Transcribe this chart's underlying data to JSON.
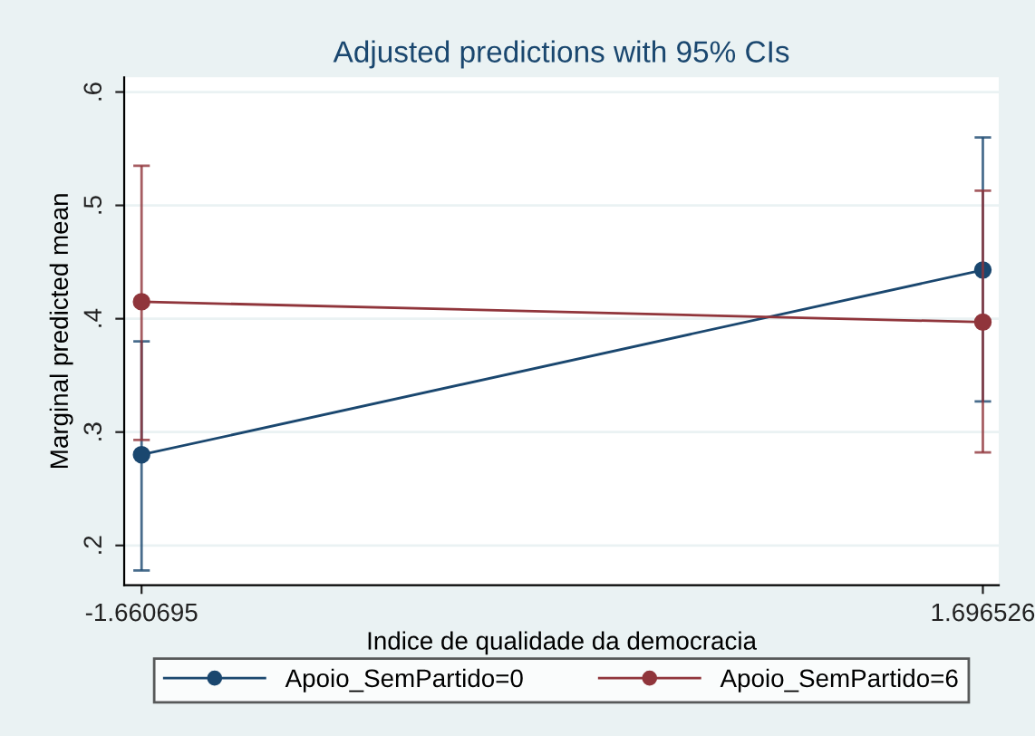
{
  "chart_data": {
    "type": "line",
    "title": "Adjusted predictions with 95% CIs",
    "xlabel": "Indice de qualidade da democracia",
    "ylabel": "Marginal predicted mean",
    "x": [
      -1.660695,
      1.696526
    ],
    "series": [
      {
        "name": "Apoio_SemPartido=0",
        "color": "#1a476f",
        "values": [
          0.28,
          0.443
        ],
        "errors": [
          [
            0.178,
            0.38
          ],
          [
            0.327,
            0.56
          ]
        ]
      },
      {
        "name": "Apoio_SemPartido=6",
        "color": "#90353b",
        "values": [
          0.415,
          0.397
        ],
        "errors": [
          [
            0.293,
            0.535
          ],
          [
            0.282,
            0.513
          ]
        ]
      }
    ],
    "xlim": [
      -1.73,
      1.76
    ],
    "xticks": [
      -1.660695,
      {
        "value": 1.696526,
        "label": "1.696526"
      }
    ],
    "ylim": [
      0.165,
      0.613
    ],
    "yticks": [
      {
        "value": 0.2,
        "label": ".2"
      },
      {
        "value": 0.3,
        "label": ".3"
      },
      {
        "value": 0.4,
        "label": ".4"
      },
      {
        "value": 0.5,
        "label": ".5"
      },
      {
        "value": 0.6,
        "label": ".6"
      }
    ],
    "grid": "y",
    "legend": "bottom",
    "marker": "circle",
    "line_style": "solid"
  }
}
